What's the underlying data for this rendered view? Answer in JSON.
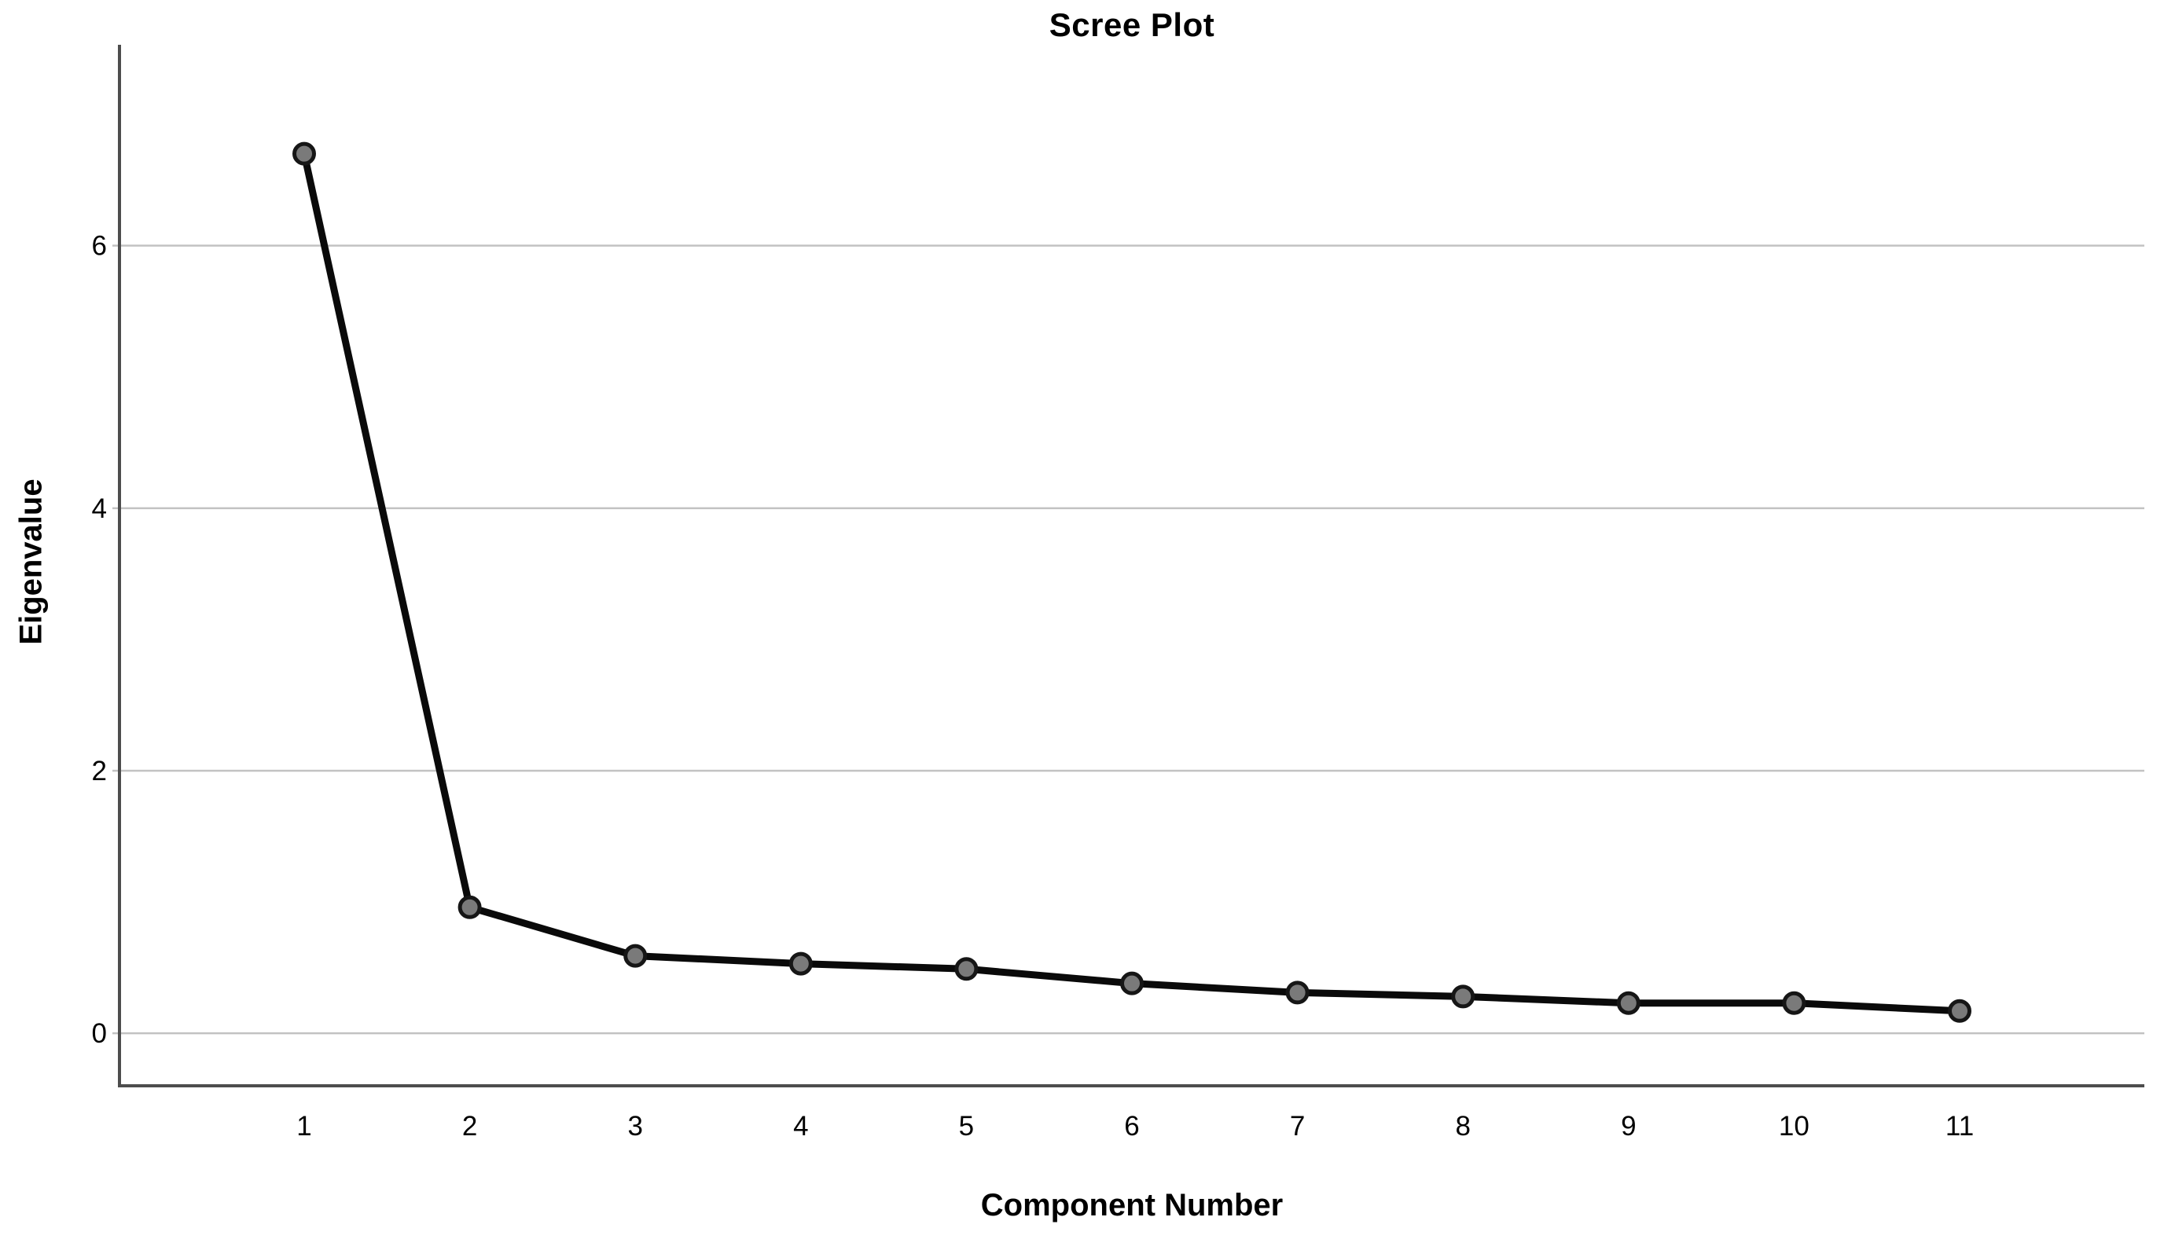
{
  "chart_data": {
    "type": "line",
    "title": "Scree Plot",
    "xlabel": "Component Number",
    "ylabel": "Eigenvalue",
    "categories": [
      1,
      2,
      3,
      4,
      5,
      6,
      7,
      8,
      9,
      10,
      11
    ],
    "values": [
      6.7,
      0.96,
      0.59,
      0.53,
      0.49,
      0.38,
      0.31,
      0.28,
      0.23,
      0.23,
      0.17
    ],
    "series": [
      {
        "name": "Eigenvalue",
        "values": [
          6.7,
          0.96,
          0.59,
          0.53,
          0.49,
          0.38,
          0.31,
          0.28,
          0.23,
          0.23,
          0.17
        ]
      }
    ],
    "yticks": [
      0,
      2,
      4,
      6
    ],
    "ylim": [
      -0.4,
      7.53
    ],
    "grid": "horizontal-only",
    "legend": false,
    "colors": {
      "line": "#0a0a0a",
      "marker_fill": "#7a7a7a",
      "marker_stroke": "#161616",
      "gridline": "#c2c2c2",
      "axis": "#4d4d4d",
      "tick_text": "#000000",
      "background": "#ffffff"
    }
  }
}
